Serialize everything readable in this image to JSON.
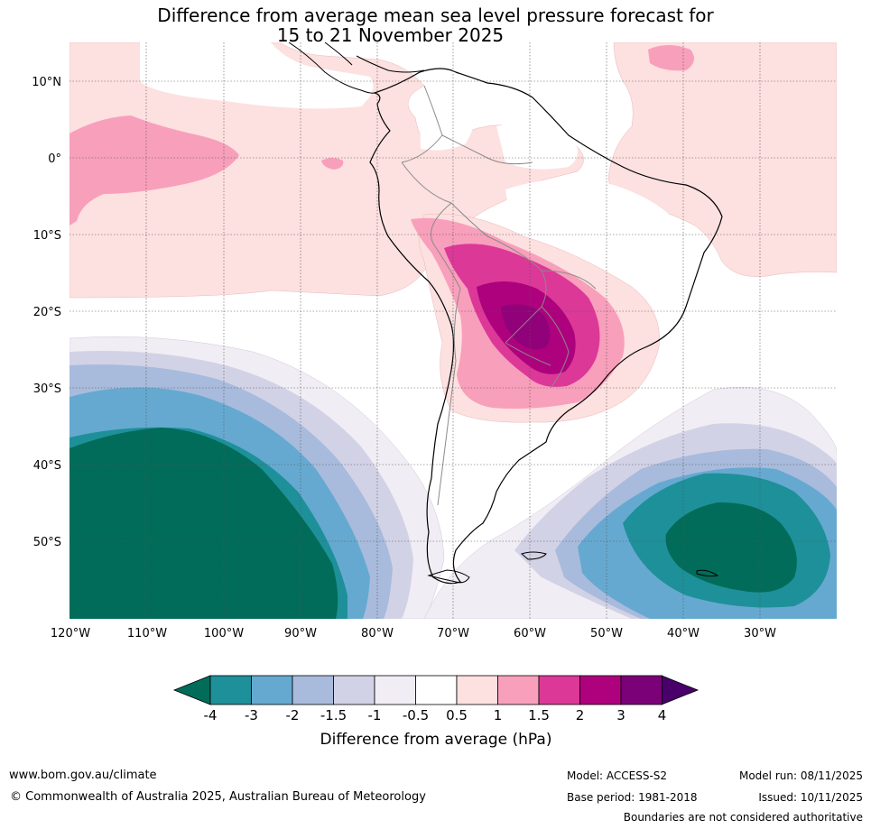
{
  "title": {
    "line1": "Difference from average mean sea level pressure forecast for",
    "line2": "15 to 21 November 2025"
  },
  "map": {
    "lon_labels": [
      "120°W",
      "110°W",
      "100°W",
      "90°W",
      "80°W",
      "70°W",
      "60°W",
      "50°W",
      "40°W",
      "30°W"
    ],
    "lat_labels": [
      "10°N",
      "0°",
      "10°S",
      "20°S",
      "30°S",
      "40°S",
      "50°S"
    ]
  },
  "colorbar": {
    "title": "Difference from average (hPa)",
    "ticks": [
      "-4",
      "-3",
      "-2",
      "-1.5",
      "-1",
      "-0.5",
      "0.5",
      "1",
      "1.5",
      "2",
      "3",
      "4"
    ],
    "colors": [
      "#1e9099",
      "#66a9d0",
      "#a8bbdc",
      "#d2d2e6",
      "#f1edf4",
      "#ffffff",
      "#fde0e0",
      "#f89fbb",
      "#dc3898",
      "#ae017e",
      "#7a0177"
    ],
    "under_color": "#016c59",
    "over_color": "#49006a"
  },
  "footer": {
    "website": "www.bom.gov.au/climate",
    "copyright": "© Commonwealth of Australia 2025, Australian Bureau of Meteorology",
    "model": "Model: ACCESS-S2",
    "model_run": "Model run: 08/11/2025",
    "base_period": "Base period: 1981-2018",
    "issued": "Issued: 10/11/2025",
    "disclaimer": "Boundaries are not considered authoritative"
  }
}
